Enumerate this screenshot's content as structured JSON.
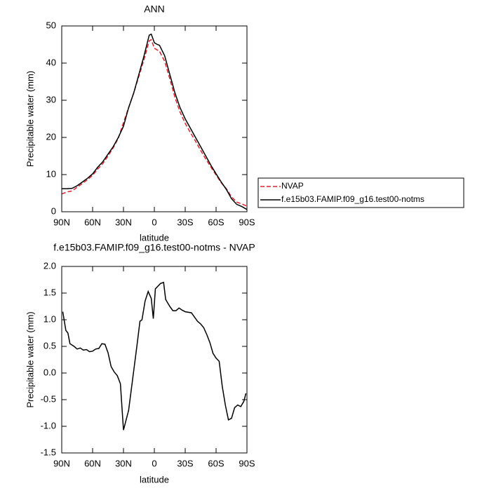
{
  "chart_data": [
    {
      "type": "line",
      "title": "ANN",
      "xlabel": "latitude",
      "ylabel": "Precipitable water (mm)",
      "x": [
        90,
        85,
        80,
        75,
        70,
        65,
        60,
        55,
        50,
        45,
        40,
        35,
        30,
        25,
        20,
        15,
        10,
        5,
        3,
        0,
        -3,
        -5,
        -10,
        -15,
        -20,
        -25,
        -30,
        -35,
        -40,
        -45,
        -50,
        -55,
        -60,
        -65,
        -70,
        -75,
        -80,
        -85,
        -90
      ],
      "series": [
        {
          "name": "NVAP",
          "color": "#e0202a",
          "line_style": "dashed",
          "values": [
            4.8,
            5.3,
            5.6,
            6.6,
            7.6,
            8.6,
            9.8,
            11.5,
            13,
            15,
            17.2,
            19.8,
            24,
            28,
            32,
            36.5,
            41,
            46,
            46.3,
            44,
            43.5,
            43.2,
            40.5,
            35.8,
            30.8,
            26.8,
            23.8,
            21.3,
            19,
            16.5,
            14.2,
            12,
            9.9,
            7.8,
            6.2,
            4,
            2.6,
            2.1,
            1.5
          ]
        },
        {
          "name": "f.e15b03.FAMIP.f09_g16.test00-notms",
          "color": "#000000",
          "line_style": "solid",
          "values": [
            6.2,
            6.2,
            6.3,
            7,
            8,
            9,
            10.2,
            12,
            13.5,
            15.5,
            17.5,
            20,
            23,
            28,
            32,
            37,
            42,
            47.5,
            47.8,
            45.5,
            45,
            44.8,
            42,
            37,
            32,
            28,
            25,
            22.5,
            20,
            17.5,
            15,
            12.5,
            10.2,
            8,
            6,
            3.5,
            2,
            1.4,
            0.6
          ]
        }
      ],
      "xlim": [
        90,
        -90
      ],
      "xticks": [
        {
          "value": 90,
          "label": "90N"
        },
        {
          "value": 60,
          "label": "60N"
        },
        {
          "value": 30,
          "label": "30N"
        },
        0,
        {
          "value": -30,
          "label": "30S"
        },
        {
          "value": -60,
          "label": "60S"
        },
        {
          "value": -90,
          "label": "90S"
        }
      ],
      "ylim": [
        0,
        50
      ],
      "yticks": [
        0,
        10,
        20,
        30,
        40,
        50
      ],
      "legend": "right"
    },
    {
      "type": "line",
      "title": "f.e15b03.FAMIP.f09_g16.test00-notms - NVAP",
      "xlabel": "latitude",
      "ylabel": "Precipitable water (mm)",
      "x": [
        89,
        86,
        84,
        82,
        78,
        75,
        72,
        69,
        66,
        63,
        60,
        57,
        54,
        51,
        48,
        45,
        42,
        39,
        36,
        33,
        30,
        25,
        20,
        17,
        14,
        12,
        9,
        6,
        3,
        1,
        -1,
        -3,
        -6,
        -9,
        -11,
        -15,
        -18,
        -21,
        -24,
        -27,
        -30,
        -36,
        -39,
        -42,
        -45,
        -48,
        -51,
        -54,
        -57,
        -60,
        -63,
        -66,
        -69,
        -72,
        -75,
        -78,
        -81,
        -84,
        -87,
        -89
      ],
      "values": [
        1.15,
        0.8,
        0.75,
        0.55,
        0.5,
        0.45,
        0.47,
        0.43,
        0.44,
        0.4,
        0.41,
        0.45,
        0.46,
        0.55,
        0.54,
        0.38,
        0.12,
        0.02,
        -0.05,
        -0.2,
        -1.07,
        -0.7,
        0.05,
        0.5,
        0.97,
        1.0,
        1.35,
        1.53,
        1.4,
        1.02,
        1.58,
        1.62,
        1.68,
        1.7,
        1.38,
        1.25,
        1.17,
        1.17,
        1.22,
        1.18,
        1.15,
        1.13,
        1.05,
        0.97,
        0.92,
        0.85,
        0.72,
        0.57,
        0.37,
        0.28,
        0.22,
        -0.25,
        -0.6,
        -0.88,
        -0.85,
        -0.65,
        -0.6,
        -0.63,
        -0.53,
        -0.38
      ],
      "color": "#000000",
      "xlim": [
        90,
        -90
      ],
      "xticks": [
        {
          "value": 90,
          "label": "90N"
        },
        {
          "value": 60,
          "label": "60N"
        },
        {
          "value": 30,
          "label": "30N"
        },
        0,
        {
          "value": -30,
          "label": "30S"
        },
        {
          "value": -60,
          "label": "60S"
        },
        {
          "value": -90,
          "label": "90S"
        }
      ],
      "ylim": [
        -1.5,
        2
      ],
      "yticks": [
        -1.5,
        {
          "value": -1,
          "label": "-1.0"
        },
        -0.5,
        {
          "value": 0,
          "label": "0.0"
        },
        0.5,
        {
          "value": 1,
          "label": "1.0"
        },
        1.5,
        {
          "value": 2,
          "label": "2.0"
        }
      ]
    }
  ]
}
